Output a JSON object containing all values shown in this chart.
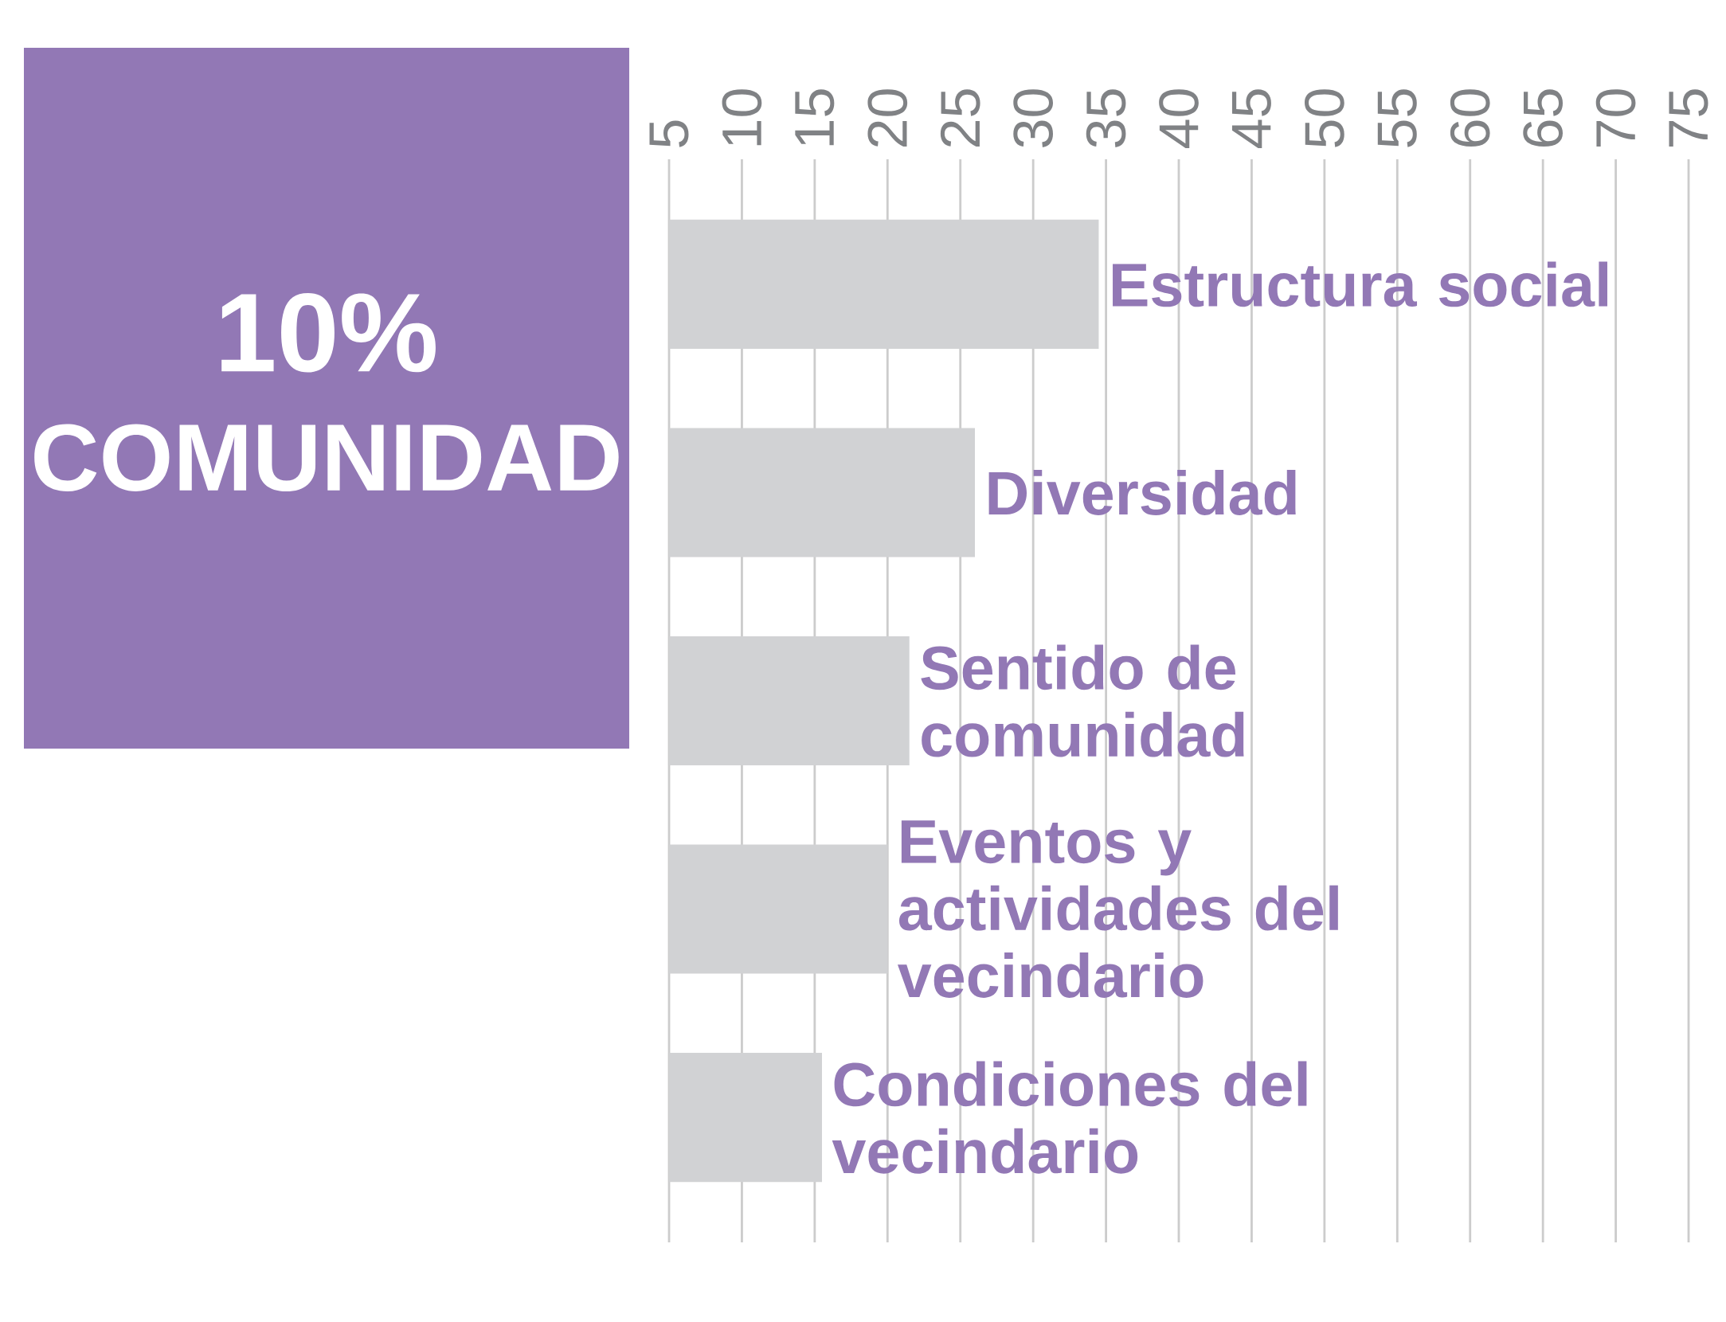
{
  "chart_data": {
    "type": "bar",
    "orientation": "horizontal",
    "title": "10%",
    "subtitle": "COMUNIDAD",
    "categories": [
      "Estructura social",
      "Diversidad",
      "Sentido de comunidad",
      "Eventos y actividades del vecindario",
      "Condiciones del vecindario"
    ],
    "values": [
      34.5,
      26,
      21.5,
      20,
      15.5
    ],
    "color": "#d1d2d4",
    "xlim": [
      5,
      75
    ],
    "xticks": [
      5,
      10,
      15,
      20,
      25,
      30,
      35,
      40,
      45,
      50,
      55,
      60,
      65,
      70,
      75
    ],
    "grid": "x"
  }
}
